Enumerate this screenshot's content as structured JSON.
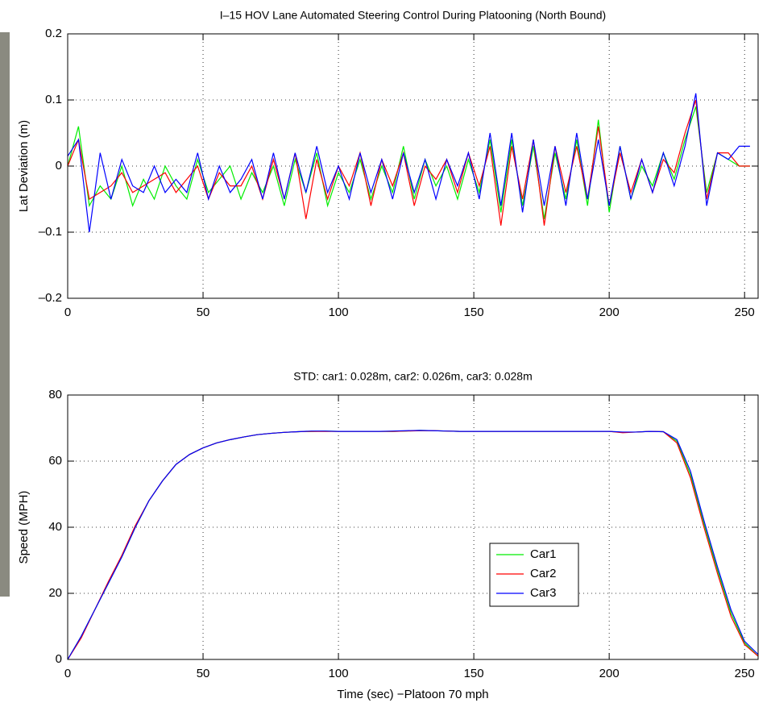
{
  "chart_data": [
    {
      "type": "line",
      "title": "I–15 HOV Lane Automated Steering Control During Platooning (North Bound)",
      "ylabel": "Lat Deviation (m)",
      "x": [
        0,
        4,
        8,
        12,
        16,
        20,
        24,
        28,
        32,
        36,
        40,
        44,
        48,
        52,
        56,
        60,
        64,
        68,
        72,
        76,
        80,
        84,
        88,
        92,
        96,
        100,
        104,
        108,
        112,
        116,
        120,
        124,
        128,
        132,
        136,
        140,
        144,
        148,
        152,
        156,
        160,
        164,
        168,
        172,
        176,
        180,
        184,
        188,
        192,
        196,
        200,
        204,
        208,
        212,
        216,
        220,
        224,
        228,
        232,
        236,
        240,
        244,
        248,
        252
      ],
      "xlim": [
        0,
        255
      ],
      "xticks": [
        0,
        50,
        100,
        150,
        200,
        250
      ],
      "ylim": [
        -0.2,
        0.2
      ],
      "yticks": [
        {
          "value": -0.2,
          "label": "–0.2"
        },
        {
          "value": -0.1,
          "label": "–0.1"
        },
        0,
        0.1,
        0.2
      ],
      "grid": true,
      "series": [
        {
          "name": "Car1",
          "color": "#00ee00",
          "values": [
            0,
            0.06,
            -0.06,
            -0.03,
            -0.05,
            0,
            -0.06,
            -0.02,
            -0.05,
            0,
            -0.03,
            -0.05,
            0.01,
            -0.04,
            -0.02,
            0,
            -0.05,
            -0.01,
            -0.04,
            0,
            -0.06,
            0.01,
            -0.04,
            0.02,
            -0.06,
            -0.01,
            -0.04,
            0.01,
            -0.05,
            0,
            -0.04,
            0.03,
            -0.05,
            0.01,
            -0.03,
            0,
            -0.05,
            0.01,
            -0.04,
            0.04,
            -0.07,
            0.04,
            -0.06,
            0.03,
            -0.08,
            0.02,
            -0.05,
            0.04,
            -0.06,
            0.07,
            -0.07,
            0.03,
            -0.05,
            0,
            -0.03,
            0.02,
            -0.02,
            0.04,
            0.09,
            -0.04,
            0.02,
            0.01,
            0,
            0
          ]
        },
        {
          "name": "Car2",
          "color": "#ff0000",
          "values": [
            0,
            0.04,
            -0.05,
            -0.04,
            -0.03,
            -0.01,
            -0.04,
            -0.03,
            -0.02,
            -0.01,
            -0.04,
            -0.02,
            0,
            -0.05,
            -0.01,
            -0.03,
            -0.03,
            0,
            -0.05,
            0.01,
            -0.05,
            0.02,
            -0.08,
            0.01,
            -0.05,
            0,
            -0.03,
            0.02,
            -0.06,
            0.01,
            -0.03,
            0.02,
            -0.06,
            0,
            -0.02,
            0.01,
            -0.04,
            0.02,
            -0.03,
            0.03,
            -0.09,
            0.03,
            -0.05,
            0.04,
            -0.09,
            0.03,
            -0.04,
            0.03,
            -0.05,
            0.06,
            -0.06,
            0.02,
            -0.04,
            0.01,
            -0.04,
            0.01,
            -0.01,
            0.05,
            0.1,
            -0.05,
            0.02,
            0.02,
            0,
            0
          ]
        },
        {
          "name": "Car3",
          "color": "#0000ff",
          "values": [
            0.015,
            0.04,
            -0.1,
            0.02,
            -0.05,
            0.01,
            -0.03,
            -0.04,
            0,
            -0.04,
            -0.02,
            -0.04,
            0.02,
            -0.05,
            0,
            -0.04,
            -0.02,
            0.01,
            -0.05,
            0.02,
            -0.05,
            0.02,
            -0.04,
            0.03,
            -0.04,
            0,
            -0.05,
            0.02,
            -0.04,
            0.01,
            -0.05,
            0.02,
            -0.04,
            0.01,
            -0.05,
            0.01,
            -0.03,
            0.02,
            -0.05,
            0.05,
            -0.06,
            0.05,
            -0.07,
            0.04,
            -0.06,
            0.03,
            -0.06,
            0.05,
            -0.05,
            0.04,
            -0.06,
            0.03,
            -0.05,
            0.01,
            -0.04,
            0.02,
            -0.03,
            0.03,
            0.11,
            -0.06,
            0.02,
            0.01,
            0.03,
            0.03
          ]
        }
      ]
    },
    {
      "type": "line",
      "title": "STD: car1: 0.028m, car2: 0.026m, car3: 0.028m",
      "ylabel": "Speed (MPH)",
      "xlabel": "Time (sec)   −Platoon 70 mph",
      "x": [
        0,
        5,
        10,
        15,
        20,
        25,
        30,
        35,
        40,
        45,
        50,
        55,
        60,
        65,
        70,
        75,
        80,
        85,
        90,
        95,
        100,
        105,
        110,
        115,
        120,
        125,
        130,
        135,
        140,
        145,
        150,
        155,
        160,
        165,
        170,
        175,
        180,
        185,
        190,
        195,
        200,
        205,
        210,
        215,
        220,
        225,
        230,
        235,
        240,
        245,
        250,
        255
      ],
      "xlim": [
        0,
        255
      ],
      "xticks": [
        0,
        50,
        100,
        150,
        200,
        250
      ],
      "ylim": [
        0,
        80
      ],
      "yticks": [
        0,
        20,
        40,
        60,
        80
      ],
      "grid": true,
      "legend": "lower-right",
      "series": [
        {
          "name": "Car1",
          "color": "#00ee00",
          "values": [
            0,
            7,
            15,
            23,
            31,
            40,
            48,
            54,
            59,
            62,
            64,
            65.5,
            66.5,
            67.3,
            68,
            68.4,
            68.7,
            68.9,
            69,
            69.1,
            69,
            69,
            69,
            69,
            69,
            69.1,
            69.3,
            69.2,
            69.1,
            69,
            69,
            69,
            69,
            69,
            69,
            69,
            69,
            69,
            69,
            69,
            69,
            68.7,
            68.8,
            69,
            68.9,
            66,
            56,
            41,
            27,
            14,
            5,
            1
          ]
        },
        {
          "name": "Car2",
          "color": "#ff0000",
          "values": [
            0,
            6.5,
            15,
            23.5,
            31.5,
            40.5,
            48,
            54,
            59,
            62,
            64,
            65.5,
            66.5,
            67.3,
            68,
            68.4,
            68.7,
            68.9,
            69,
            69,
            69,
            69,
            69,
            69,
            69,
            69.1,
            69.2,
            69.2,
            69.1,
            69,
            69,
            69,
            69,
            69,
            69,
            69,
            69,
            69,
            69,
            69,
            69,
            68.6,
            68.8,
            69,
            68.9,
            65.5,
            55,
            40,
            26,
            13,
            4.5,
            1
          ]
        },
        {
          "name": "Car3",
          "color": "#0000ff",
          "values": [
            0,
            7,
            15,
            23,
            31,
            40,
            48,
            54,
            59,
            62,
            64,
            65.5,
            66.5,
            67.3,
            68,
            68.4,
            68.7,
            68.9,
            69.1,
            69.1,
            69,
            69,
            69,
            69,
            69.1,
            69.2,
            69.3,
            69.2,
            69.1,
            69,
            69,
            69,
            69,
            69,
            69,
            69,
            69,
            69,
            69,
            69,
            69,
            68.8,
            68.8,
            69,
            68.9,
            66.5,
            57,
            42,
            28,
            15,
            5.5,
            1.5
          ]
        }
      ]
    }
  ]
}
